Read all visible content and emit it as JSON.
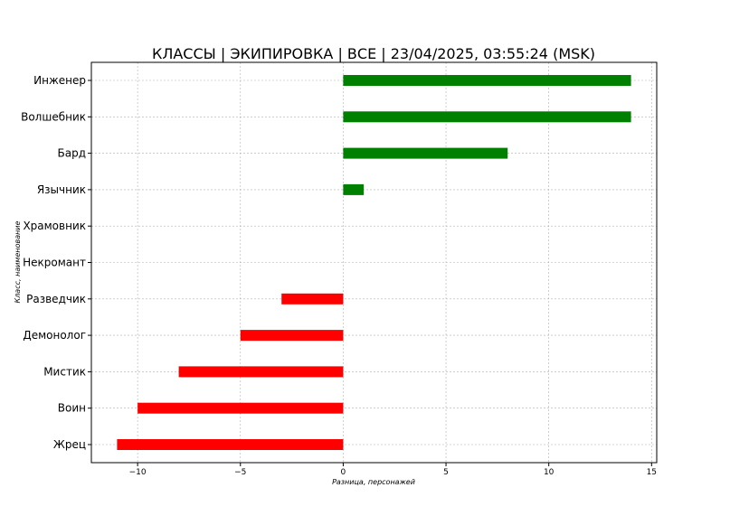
{
  "chart_data": {
    "type": "bar",
    "orientation": "horizontal",
    "title": "КЛАССЫ | ЭКИПИРОВКА | ВСЕ | 23/04/2025, 03:55:24 (MSK)",
    "xlabel": "Разница, персонажей",
    "ylabel": "Класс, наименование",
    "categories": [
      "Инженер",
      "Волшебник",
      "Бард",
      "Язычник",
      "Храмовник",
      "Некромант",
      "Разведчик",
      "Демонолог",
      "Мистик",
      "Воин",
      "Жрец"
    ],
    "values": [
      14,
      14,
      8,
      1,
      0,
      0,
      -3,
      -5,
      -8,
      -10,
      -11
    ],
    "xlim": [
      -12.25,
      15.25
    ],
    "xticks": [
      -10,
      -5,
      0,
      5,
      10,
      15
    ],
    "xtick_labels": [
      "−10",
      "−5",
      "0",
      "5",
      "10",
      "15"
    ],
    "grid": true,
    "colors": {
      "positive": "#008000",
      "negative": "#ff0000"
    }
  }
}
